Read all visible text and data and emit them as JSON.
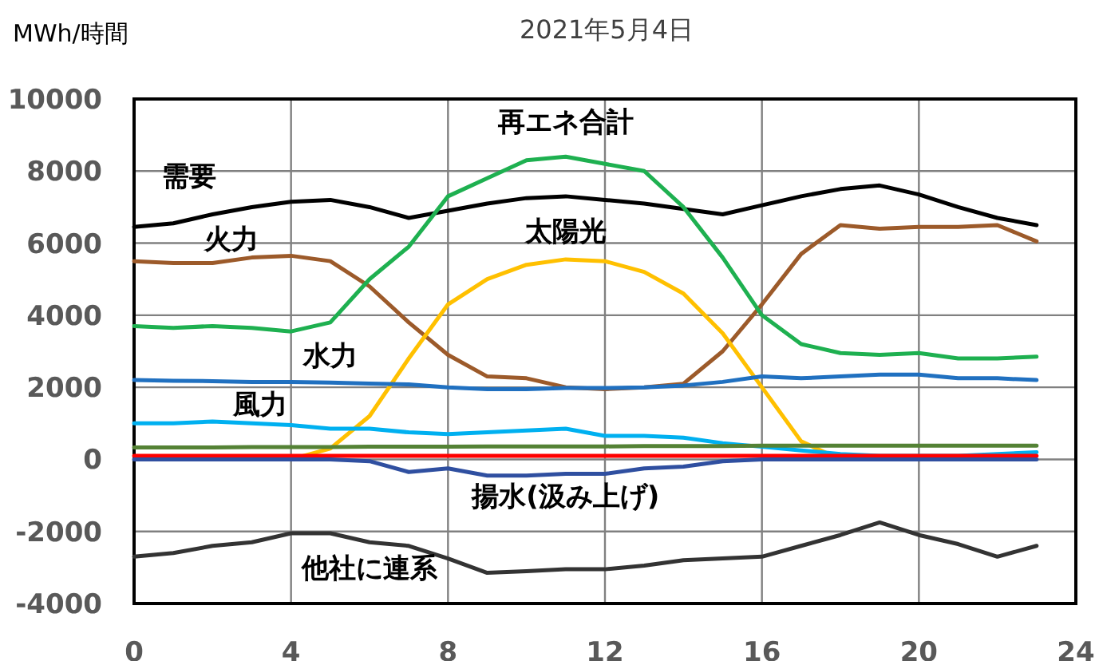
{
  "chart_data": {
    "type": "line",
    "title": "2021年5月4日",
    "ylabel": "MWh/時間",
    "x": [
      0,
      1,
      2,
      3,
      4,
      5,
      6,
      7,
      8,
      9,
      10,
      11,
      12,
      13,
      14,
      15,
      16,
      17,
      18,
      19,
      20,
      21,
      22,
      23
    ],
    "series": [
      {
        "name": "需要",
        "color": "#000000",
        "values": [
          6450,
          6550,
          6800,
          7000,
          7150,
          7200,
          7000,
          6700,
          6900,
          7100,
          7250,
          7300,
          7200,
          7100,
          6950,
          6800,
          7050,
          7300,
          7500,
          7600,
          7350,
          7000,
          6700,
          6500
        ]
      },
      {
        "name": "火力",
        "color": "#9c5a2a",
        "values": [
          5500,
          5450,
          5450,
          5600,
          5650,
          5500,
          4800,
          3800,
          2900,
          2300,
          2250,
          2000,
          1950,
          2000,
          2100,
          3000,
          4300,
          5700,
          6500,
          6400,
          6450,
          6450,
          6500,
          6050
        ]
      },
      {
        "name": "再エネ合計",
        "color": "#1eb050",
        "values": [
          3700,
          3650,
          3700,
          3650,
          3550,
          3800,
          5000,
          5900,
          7300,
          7800,
          8300,
          8400,
          8200,
          8000,
          7000,
          5600,
          4000,
          3200,
          2950,
          2900,
          2950,
          2800,
          2800,
          2850
        ]
      },
      {
        "name": "太陽光",
        "color": "#ffc000",
        "values": [
          null,
          null,
          null,
          0,
          0,
          300,
          1200,
          2800,
          4300,
          5000,
          5400,
          5550,
          5500,
          5200,
          4600,
          3500,
          2000,
          500,
          0,
          0,
          null,
          null,
          null,
          null
        ]
      },
      {
        "name": "水力",
        "color": "#2070c0",
        "values": [
          2200,
          2180,
          2170,
          2150,
          2150,
          2130,
          2100,
          2080,
          2000,
          1950,
          1950,
          1980,
          1980,
          2000,
          2050,
          2150,
          2300,
          2250,
          2300,
          2350,
          2350,
          2250,
          2250,
          2200
        ]
      },
      {
        "name": "風力",
        "color": "#00b0f0",
        "values": [
          1000,
          1000,
          1050,
          1000,
          950,
          850,
          850,
          750,
          700,
          750,
          800,
          850,
          650,
          650,
          600,
          450,
          350,
          250,
          150,
          100,
          100,
          100,
          150,
          200
        ]
      },
      {
        "color": "#548235",
        "values": [
          330,
          330,
          330,
          340,
          340,
          340,
          350,
          350,
          350,
          360,
          360,
          360,
          360,
          370,
          370,
          370,
          380,
          380,
          380,
          380,
          380,
          380,
          380,
          380
        ]
      },
      {
        "color": "#ff0000",
        "values": [
          100,
          100,
          100,
          100,
          100,
          100,
          100,
          100,
          100,
          100,
          100,
          100,
          100,
          100,
          100,
          100,
          100,
          100,
          100,
          100,
          100,
          100,
          100,
          100
        ]
      },
      {
        "name": "揚水(汲み上げ)",
        "color": "#2f4fa0",
        "values": [
          0,
          0,
          0,
          0,
          0,
          0,
          -50,
          -350,
          -250,
          -450,
          -450,
          -400,
          -400,
          -250,
          -200,
          -50,
          0,
          0,
          0,
          0,
          0,
          0,
          0,
          0
        ]
      },
      {
        "name": "他社に連系",
        "color": "#333333",
        "values": [
          -2700,
          -2600,
          -2400,
          -2300,
          -2050,
          -2050,
          -2300,
          -2400,
          -2750,
          -3150,
          -3100,
          -3050,
          -3050,
          -2950,
          -2800,
          -2750,
          -2700,
          -2400,
          -2100,
          -1750,
          -2100,
          -2350,
          -2700,
          -2400
        ]
      }
    ],
    "xlim": [
      0,
      24
    ],
    "xticks": [
      0,
      4,
      8,
      12,
      16,
      20,
      24
    ],
    "ylim": [
      -4000,
      10000
    ],
    "yticks": [
      -4000,
      -2000,
      0,
      2000,
      4000,
      6000,
      8000,
      10000
    ],
    "grid": true
  }
}
